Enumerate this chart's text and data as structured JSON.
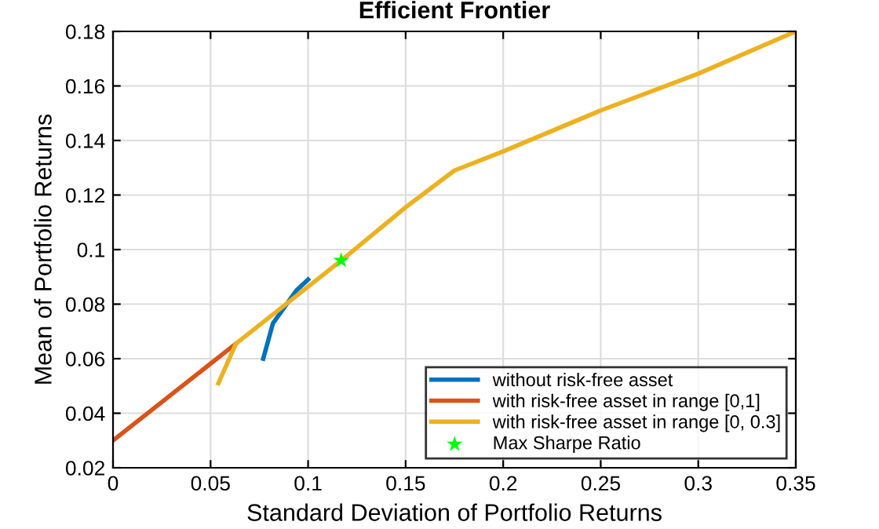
{
  "chart_data": {
    "type": "line",
    "title": "Efficient Frontier",
    "xlabel": "Standard Deviation of Portfolio Returns",
    "ylabel": "Mean of Portfolio Returns",
    "xlim": [
      0,
      0.35
    ],
    "ylim": [
      0.02,
      0.18
    ],
    "xticks": [
      0,
      0.05,
      0.1,
      0.15,
      0.2,
      0.25,
      0.3,
      0.35
    ],
    "yticks": [
      0.02,
      0.04,
      0.06,
      0.08,
      0.1,
      0.12,
      0.14,
      0.16,
      0.18
    ],
    "grid": true,
    "legend": "bottom right",
    "series": [
      {
        "name": "without risk-free asset",
        "color": "#0072bd",
        "x": [
          0.077,
          0.082,
          0.094,
          0.1
        ],
        "values": [
          0.06,
          0.073,
          0.085,
          0.089
        ]
      },
      {
        "name": "with risk-free asset in range [0,1]",
        "color": "#d95319",
        "x": [
          0,
          0.063
        ],
        "values": [
          0.03,
          0.0655
        ]
      },
      {
        "name": "with risk-free asset in range [0, 0.3]",
        "color": "#edb120",
        "x": [
          0.054,
          0.063,
          0.117,
          0.15,
          0.175,
          0.2,
          0.25,
          0.3,
          0.35
        ],
        "values": [
          0.051,
          0.0655,
          0.096,
          0.1155,
          0.129,
          0.136,
          0.151,
          0.1645,
          0.18
        ]
      },
      {
        "name": "Max Sharpe Ratio",
        "type": "scatter",
        "marker": "star",
        "color": "#00ff00",
        "x": [
          0.117
        ],
        "values": [
          0.096
        ]
      }
    ]
  }
}
